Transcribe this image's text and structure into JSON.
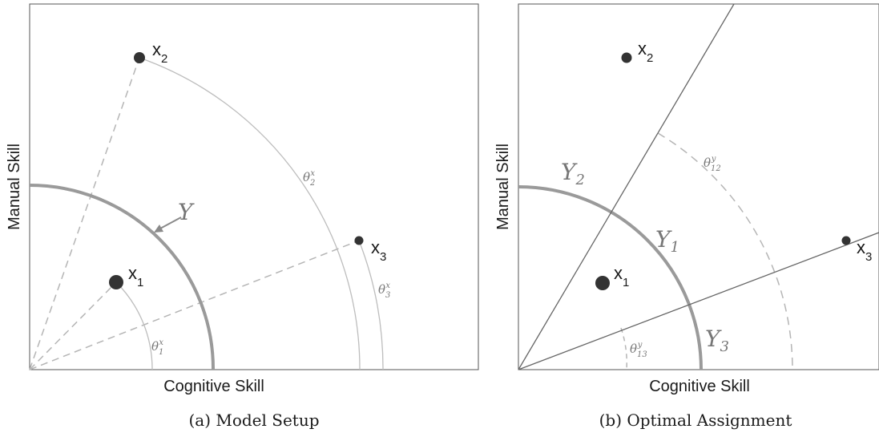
{
  "panel_a": {
    "caption": "(a) Model Setup",
    "x_axis_label": "Cognitive Skill",
    "y_axis_label": "Manual Skill",
    "set_label": "Y",
    "points": [
      {
        "name": "x",
        "sub": "1",
        "theta_sub": "1",
        "theta_sup": "x"
      },
      {
        "name": "x",
        "sub": "2",
        "theta_sub": "2",
        "theta_sup": "x"
      },
      {
        "name": "x",
        "sub": "3",
        "theta_sub": "3",
        "theta_sup": "x"
      }
    ]
  },
  "panel_b": {
    "caption": "(b) Optimal Assignment",
    "x_axis_label": "Cognitive Skill",
    "y_axis_label": "Manual Skill",
    "points": [
      {
        "name": "x",
        "sub": "1"
      },
      {
        "name": "x",
        "sub": "2"
      },
      {
        "name": "x",
        "sub": "3"
      }
    ],
    "segments": [
      {
        "name": "Y",
        "sub": "1"
      },
      {
        "name": "Y",
        "sub": "2"
      },
      {
        "name": "Y",
        "sub": "3"
      }
    ],
    "angles": [
      {
        "theta_sub": "12",
        "theta_sup": "y"
      },
      {
        "theta_sub": "13",
        "theta_sup": "y"
      }
    ]
  },
  "colors": {
    "frame": "#555555",
    "arc_thick": "#9a9a9a",
    "arc_thin": "#bdbdbd",
    "dashed": "#b5b5b5",
    "ray": "#666666",
    "point": "#333333"
  }
}
